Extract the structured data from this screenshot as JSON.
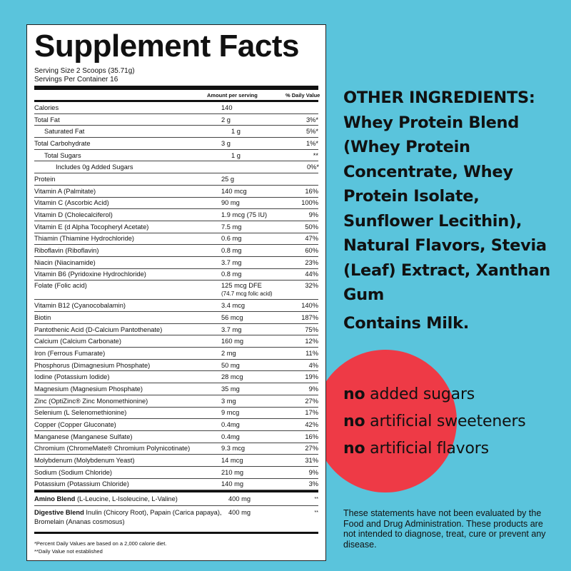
{
  "panel": {
    "title": "Supplement Facts",
    "serving_size": "Serving Size 2 Scoops (35.71g)",
    "servings_per_container": "Servings Per Container 16",
    "col_amount": "Amount per serving",
    "col_dv": "% Daily Value",
    "rows": [
      {
        "name": "Calories",
        "amount": "140",
        "dv": ""
      },
      {
        "name": "Total Fat",
        "amount": "2 g",
        "dv": "3%*"
      },
      {
        "name": "Saturated Fat",
        "amount": "1 g",
        "dv": "5%*"
      },
      {
        "name": "Total Carbohydrate",
        "amount": "3 g",
        "dv": "1%*"
      },
      {
        "name": "Total Sugars",
        "amount": "1 g",
        "dv": "**"
      },
      {
        "name": "Includes 0g Added Sugars",
        "amount": "",
        "dv": "0%*"
      },
      {
        "name": "Protein",
        "amount": "25 g",
        "dv": ""
      },
      {
        "name": "Vitamin A (Palmitate)",
        "amount": "140 mcg",
        "dv": "16%"
      },
      {
        "name": "Vitamin C (Ascorbic Acid)",
        "amount": "90 mg",
        "dv": "100%"
      },
      {
        "name": "Vitamin D (Cholecalciferol)",
        "amount": "1.9 mcg (75 IU)",
        "dv": "9%"
      },
      {
        "name": "Vitamin E (d Alpha Tocopheryl Acetate)",
        "amount": "7.5 mg",
        "dv": "50%"
      },
      {
        "name": "Thiamin (Thiamine Hydrochloride)",
        "amount": "0.6 mg",
        "dv": "47%"
      },
      {
        "name": "Riboflavin (Riboflavin)",
        "amount": "0.8 mg",
        "dv": "60%"
      },
      {
        "name": "Niacin (Niacinamide)",
        "amount": "3.7 mg",
        "dv": "23%"
      },
      {
        "name": "Vitamin B6 (Pyridoxine Hydrochloride)",
        "amount": "0.8 mg",
        "dv": "44%"
      },
      {
        "name": "Folate (Folic acid)",
        "amount": "125 mcg DFE",
        "amount_sub": "(74.7 mcg folic acid)",
        "dv": "32%"
      },
      {
        "name": "Vitamin B12 (Cyanocobalamin)",
        "amount": "3.4 mcg",
        "dv": "140%"
      },
      {
        "name": "Biotin",
        "amount": "56 mcg",
        "dv": "187%"
      },
      {
        "name": "Pantothenic Acid (D-Calcium Pantothenate)",
        "amount": "3.7 mg",
        "dv": "75%"
      },
      {
        "name": "Calcium (Calcium Carbonate)",
        "amount": "160 mg",
        "dv": "12%"
      },
      {
        "name": "Iron (Ferrous Fumarate)",
        "amount": "2 mg",
        "dv": "11%"
      },
      {
        "name": "Phosphorus (Dimagnesium Phosphate)",
        "amount": "50 mg",
        "dv": "4%"
      },
      {
        "name": "Iodine (Potassium Iodide)",
        "amount": "28 mcg",
        "dv": "19%"
      },
      {
        "name": "Magnesium (Magnesium Phosphate)",
        "amount": "35 mg",
        "dv": "9%"
      },
      {
        "name": "Zinc (OptiZinc® Zinc Monomethionine)",
        "amount": "3 mg",
        "dv": "27%"
      },
      {
        "name": "Selenium (L Selenomethionine)",
        "amount": "9 mcg",
        "dv": "17%"
      },
      {
        "name": "Copper (Copper Gluconate)",
        "amount": "0.4mg",
        "dv": "42%"
      },
      {
        "name": "Manganese (Manganese Sulfate)",
        "amount": "0.4mg",
        "dv": "16%"
      },
      {
        "name": "Chromium (ChromeMate® Chromium Polynicotinate)",
        "amount": "9.3 mcg",
        "dv": "27%"
      },
      {
        "name": "Molybdenum (Molybdenum Yeast)",
        "amount": "14 mcg",
        "dv": "31%"
      },
      {
        "name": "Sodium (Sodium Chloride)",
        "amount": "210 mg",
        "dv": "9%"
      },
      {
        "name": "Potassium (Potassium Chloride)",
        "amount": "140 mg",
        "dv": "3%"
      }
    ],
    "amino_name": "Amino Blend",
    "amino_desc": "(L-Leucine, L-Isoleucine, L-Valine)",
    "amino_amount": "400 mg",
    "amino_dv": "**",
    "digestive_name": "Digestive Blend",
    "digestive_desc": "Inulin (Chicory Root), Papain (Carica papaya), Bromelain (Ananas cosmosus)",
    "digestive_amount": "400 mg",
    "digestive_dv": "**",
    "footnote1": "*Percent Daily Values are based on a 2,000 calorie diet.",
    "footnote2": "**Daily Value not established"
  },
  "other_ingredients": "OTHER INGREDIENTS: Whey Protein Blend (Whey Protein Concentrate, Whey Protein Isolate, Sunflower Lecithin), Natural Flavors, Stevia (Leaf) Extract, Xanthan Gum",
  "contains": "Contains Milk.",
  "claims": [
    {
      "prefix": "no",
      "text": " added sugars"
    },
    {
      "prefix": "no",
      "text": " artificial sweeteners"
    },
    {
      "prefix": "no",
      "text": " artificial flavors"
    }
  ],
  "disclaimer": "These statements have not been evaluated by the Food and Drug Administration. These products are not intended to diagnose, treat, cure or prevent any disease.",
  "colors": {
    "background": "#5ac4dc",
    "circle": "#ee3a46"
  }
}
